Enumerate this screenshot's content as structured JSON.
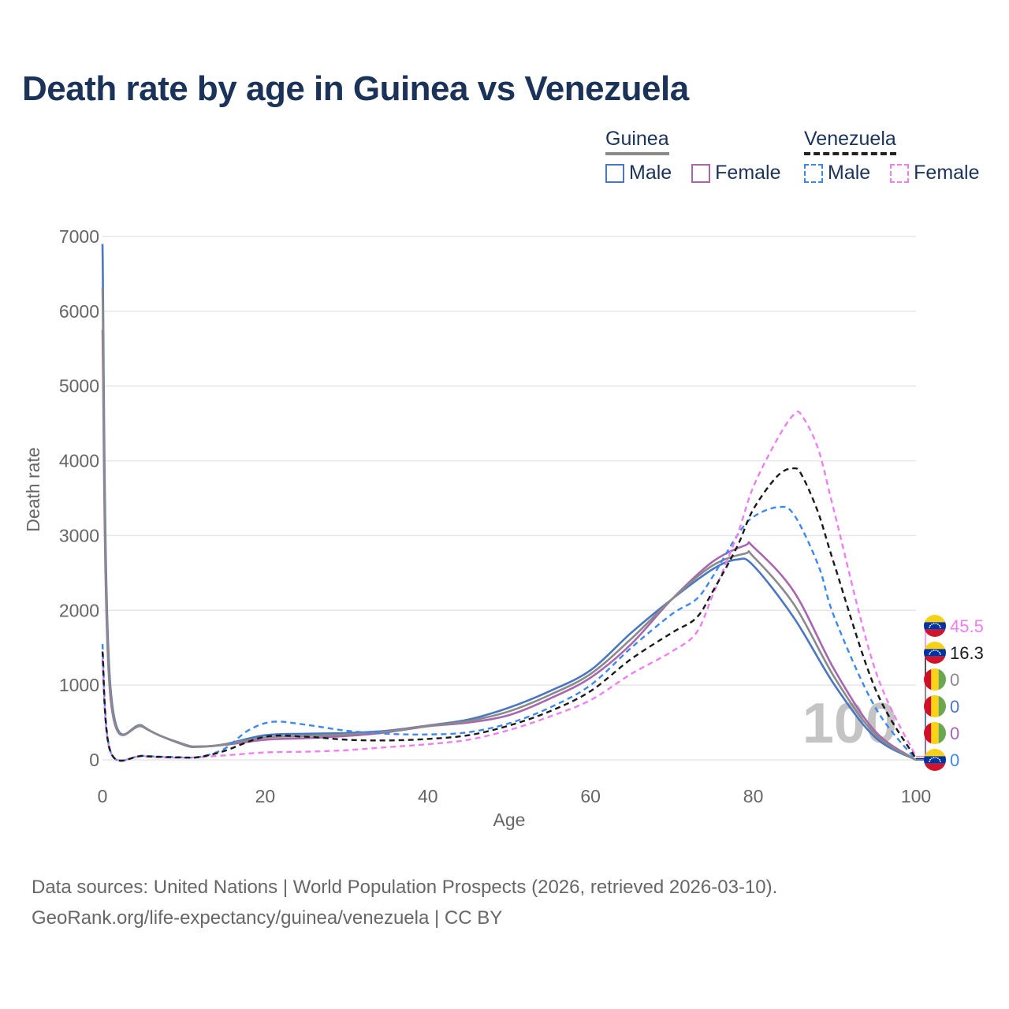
{
  "title": "Death rate by age in Guinea vs Venezuela",
  "legend": {
    "country1": "Guinea",
    "country2": "Venezuela",
    "male": "Male",
    "female": "Female"
  },
  "footer": {
    "line1": "Data sources: United Nations | World Population Prospects (2026, retrieved 2026-03-10).",
    "line2": "GeoRank.org/life-expectancy/guinea/venezuela | CC BY"
  },
  "colors": {
    "guinea_male": "#4a77c2",
    "guinea_female": "#a865b0",
    "guinea_both": "#8a8a8a",
    "venezuela_male": "#3d88ee",
    "venezuela_female": "#f07ef0",
    "venezuela_both": "#1a1a1a",
    "grid": "#e6e6e6",
    "axis_text": "#666666"
  },
  "chart_data": {
    "type": "line",
    "title": "Death rate by age in Guinea vs Venezuela",
    "xlabel": "Age",
    "ylabel": "Death rate",
    "xlim": [
      0,
      100
    ],
    "ylim": [
      0,
      7000
    ],
    "x_ticks": [
      0,
      20,
      40,
      60,
      80,
      100
    ],
    "y_ticks": [
      0,
      1000,
      2000,
      3000,
      4000,
      5000,
      6000,
      7000
    ],
    "watermark": "100",
    "series": [
      {
        "name": "Guinea Male",
        "color": "#4a77c2",
        "dashed": false,
        "end_label": "0",
        "x": [
          0,
          1,
          5,
          10,
          12,
          15,
          20,
          25,
          30,
          35,
          40,
          45,
          50,
          55,
          60,
          65,
          70,
          75,
          78,
          80,
          85,
          90,
          95,
          100
        ],
        "y": [
          6900,
          950,
          450,
          210,
          180,
          210,
          330,
          350,
          360,
          390,
          460,
          540,
          700,
          920,
          1200,
          1700,
          2150,
          2550,
          2680,
          2600,
          1900,
          1000,
          300,
          0
        ]
      },
      {
        "name": "Guinea Female",
        "color": "#a865b0",
        "dashed": false,
        "end_label": "0",
        "x": [
          0,
          1,
          5,
          10,
          12,
          15,
          20,
          25,
          30,
          35,
          40,
          45,
          50,
          55,
          60,
          65,
          70,
          75,
          79,
          80,
          85,
          90,
          95,
          100
        ],
        "y": [
          5750,
          820,
          440,
          200,
          175,
          200,
          270,
          290,
          320,
          370,
          450,
          500,
          600,
          820,
          1100,
          1550,
          2150,
          2650,
          2870,
          2850,
          2250,
          1200,
          380,
          0
        ]
      },
      {
        "name": "Guinea",
        "color": "#8a8a8a",
        "dashed": false,
        "end_label": "0",
        "x": [
          0,
          1,
          5,
          10,
          12,
          15,
          20,
          25,
          30,
          35,
          40,
          45,
          50,
          55,
          60,
          65,
          70,
          75,
          79,
          80,
          85,
          90,
          95,
          100
        ],
        "y": [
          6320,
          880,
          445,
          205,
          178,
          205,
          300,
          320,
          340,
          380,
          455,
          520,
          650,
          870,
          1150,
          1620,
          2150,
          2600,
          2760,
          2720,
          2080,
          1100,
          340,
          0
        ]
      },
      {
        "name": "Venezuela Male",
        "color": "#3d88ee",
        "dashed": true,
        "end_label": "0",
        "x": [
          0,
          1,
          5,
          10,
          12,
          15,
          18,
          21,
          25,
          30,
          35,
          40,
          45,
          50,
          55,
          60,
          65,
          70,
          73,
          75,
          78,
          80,
          83,
          85,
          88,
          90,
          95,
          100
        ],
        "y": [
          1550,
          110,
          55,
          35,
          40,
          150,
          400,
          510,
          470,
          390,
          350,
          340,
          370,
          490,
          700,
          1000,
          1500,
          1950,
          2150,
          2450,
          3000,
          3250,
          3380,
          3280,
          2600,
          1900,
          700,
          0
        ]
      },
      {
        "name": "Venezuela Female",
        "color": "#f07ef0",
        "dashed": true,
        "end_label": "45.5",
        "x": [
          0,
          1,
          5,
          10,
          15,
          20,
          25,
          30,
          35,
          40,
          45,
          50,
          55,
          60,
          65,
          70,
          73,
          75,
          78,
          80,
          83,
          85,
          86,
          88,
          90,
          95,
          100
        ],
        "y": [
          1350,
          100,
          50,
          30,
          60,
          100,
          110,
          130,
          170,
          210,
          270,
          400,
          580,
          800,
          1150,
          1450,
          1700,
          2200,
          3000,
          3650,
          4300,
          4620,
          4600,
          4150,
          3300,
          1200,
          45.5
        ]
      },
      {
        "name": "Venezuela",
        "color": "#1a1a1a",
        "dashed": true,
        "end_label": "16.3",
        "x": [
          0,
          1,
          5,
          10,
          12,
          15,
          20,
          25,
          30,
          35,
          40,
          45,
          50,
          55,
          60,
          65,
          70,
          73,
          75,
          78,
          80,
          83,
          85,
          86,
          88,
          90,
          95,
          100
        ],
        "y": [
          1450,
          105,
          52,
          32,
          40,
          120,
          310,
          310,
          270,
          260,
          280,
          330,
          460,
          650,
          920,
          1350,
          1700,
          1900,
          2250,
          2850,
          3350,
          3800,
          3900,
          3800,
          3300,
          2600,
          950,
          16.3
        ]
      }
    ]
  }
}
